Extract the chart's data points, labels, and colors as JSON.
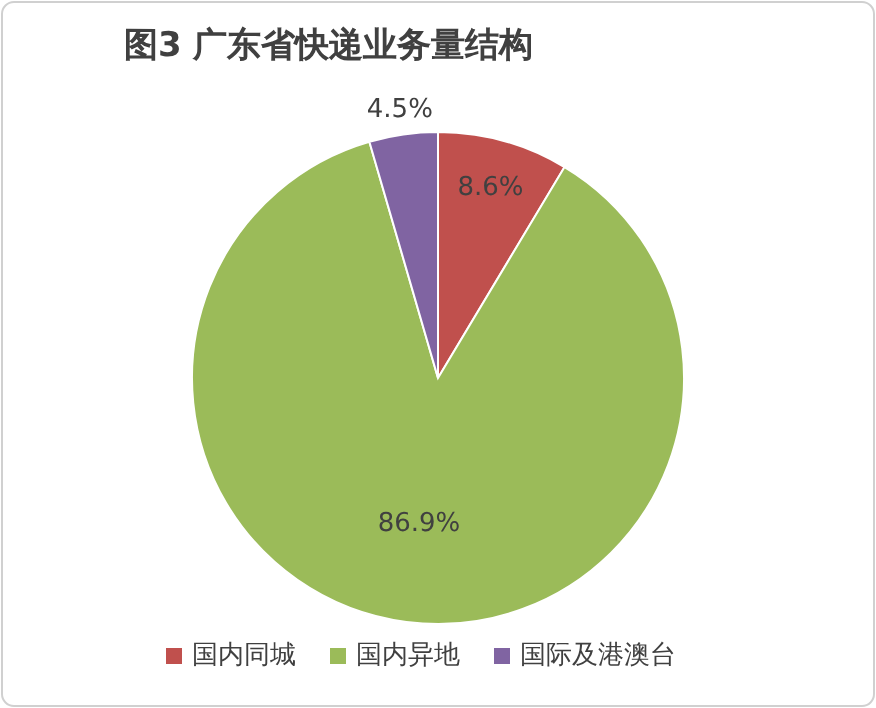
{
  "chart_data": {
    "type": "pie",
    "title": "图3 广东省快递业务量结构",
    "categories": [
      "国内同城",
      "国内异地",
      "国际及港澳台"
    ],
    "values": [
      8.6,
      86.9,
      4.5
    ],
    "colors": [
      "#c0504d",
      "#9bbb59",
      "#8064a2"
    ],
    "value_labels": [
      "8.6%",
      "86.9%",
      "4.5%"
    ],
    "legend": "bottom"
  }
}
